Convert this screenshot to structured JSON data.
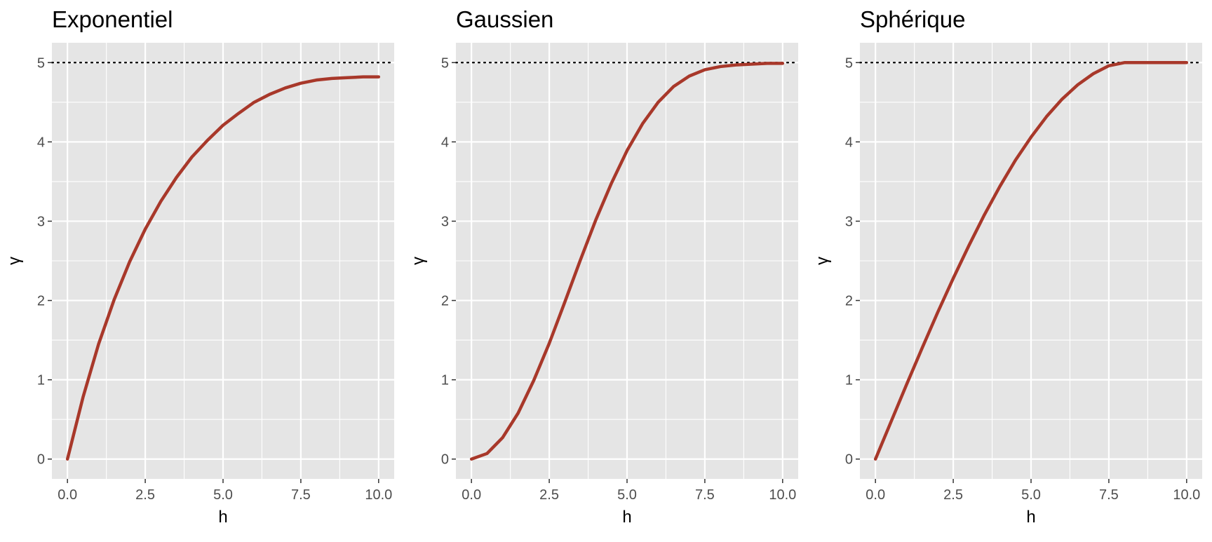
{
  "colors": {
    "panel_bg": "#e5e5e5",
    "grid": "#ffffff",
    "curve": "#a8382a",
    "sill": "#000000",
    "tick_text": "#4d4d4d",
    "title_text": "#000000"
  },
  "chart_data": [
    {
      "type": "line",
      "title": "Exponentiel",
      "xlabel": "h",
      "ylabel": "γ",
      "xlim": [
        -0.5,
        10.5
      ],
      "ylim": [
        -0.25,
        5.25
      ],
      "xticks": [
        0,
        2.5,
        5,
        7.5,
        10
      ],
      "xtick_labels": [
        "0.0",
        "2.5",
        "5.0",
        "7.5",
        "10.0"
      ],
      "yticks": [
        0,
        1,
        2,
        3,
        4,
        5
      ],
      "ytick_labels": [
        "0",
        "1",
        "2",
        "3",
        "4",
        "5"
      ],
      "grid": true,
      "sill": {
        "y": 5,
        "style": "dotted"
      },
      "series": [
        {
          "color": "#a8382a",
          "x": [
            0,
            0.5,
            1,
            1.5,
            2,
            2.5,
            3,
            3.5,
            4,
            4.5,
            5,
            5.5,
            6,
            6.5,
            7,
            7.5,
            8,
            8.5,
            9,
            9.5,
            10
          ],
          "y": [
            0,
            0.78,
            1.45,
            2.01,
            2.49,
            2.9,
            3.25,
            3.55,
            3.81,
            4.02,
            4.21,
            4.36,
            4.5,
            4.6,
            4.68,
            4.74,
            4.78,
            4.8,
            4.81,
            4.82,
            4.82
          ]
        }
      ]
    },
    {
      "type": "line",
      "title": "Gaussien",
      "xlabel": "h",
      "ylabel": "γ",
      "xlim": [
        -0.5,
        10.5
      ],
      "ylim": [
        -0.25,
        5.25
      ],
      "xticks": [
        0,
        2.5,
        5,
        7.5,
        10
      ],
      "xtick_labels": [
        "0.0",
        "2.5",
        "5.0",
        "7.5",
        "10.0"
      ],
      "yticks": [
        0,
        1,
        2,
        3,
        4,
        5
      ],
      "ytick_labels": [
        "0",
        "1",
        "2",
        "3",
        "4",
        "5"
      ],
      "grid": true,
      "sill": {
        "y": 5,
        "style": "dotted"
      },
      "series": [
        {
          "color": "#a8382a",
          "x": [
            0,
            0.5,
            1,
            1.5,
            2,
            2.5,
            3,
            3.5,
            4,
            4.5,
            5,
            5.5,
            6,
            6.5,
            7,
            7.5,
            8,
            8.5,
            9,
            9.5,
            10
          ],
          "y": [
            0,
            0.07,
            0.27,
            0.58,
            0.99,
            1.46,
            1.98,
            2.51,
            3.02,
            3.48,
            3.89,
            4.23,
            4.5,
            4.7,
            4.83,
            4.91,
            4.95,
            4.97,
            4.98,
            4.99,
            4.99
          ]
        }
      ]
    },
    {
      "type": "line",
      "title": "Sphérique",
      "xlabel": "h",
      "ylabel": "γ",
      "xlim": [
        -0.5,
        10.5
      ],
      "ylim": [
        -0.25,
        5.25
      ],
      "xticks": [
        0,
        2.5,
        5,
        7.5,
        10
      ],
      "xtick_labels": [
        "0.0",
        "2.5",
        "5.0",
        "7.5",
        "10.0"
      ],
      "yticks": [
        0,
        1,
        2,
        3,
        4,
        5
      ],
      "ytick_labels": [
        "0",
        "1",
        "2",
        "3",
        "4",
        "5"
      ],
      "grid": true,
      "sill": {
        "y": 5,
        "style": "dotted"
      },
      "series": [
        {
          "color": "#a8382a",
          "x": [
            0,
            0.5,
            1,
            1.5,
            2,
            2.5,
            3,
            3.5,
            4,
            4.5,
            5,
            5.5,
            6,
            6.5,
            7,
            7.5,
            8,
            8.5,
            9,
            9.5,
            10
          ],
          "y": [
            0,
            0.47,
            0.94,
            1.4,
            1.85,
            2.28,
            2.69,
            3.08,
            3.44,
            3.77,
            4.06,
            4.32,
            4.54,
            4.72,
            4.86,
            4.96,
            5,
            5,
            5,
            5,
            5
          ]
        }
      ]
    }
  ]
}
